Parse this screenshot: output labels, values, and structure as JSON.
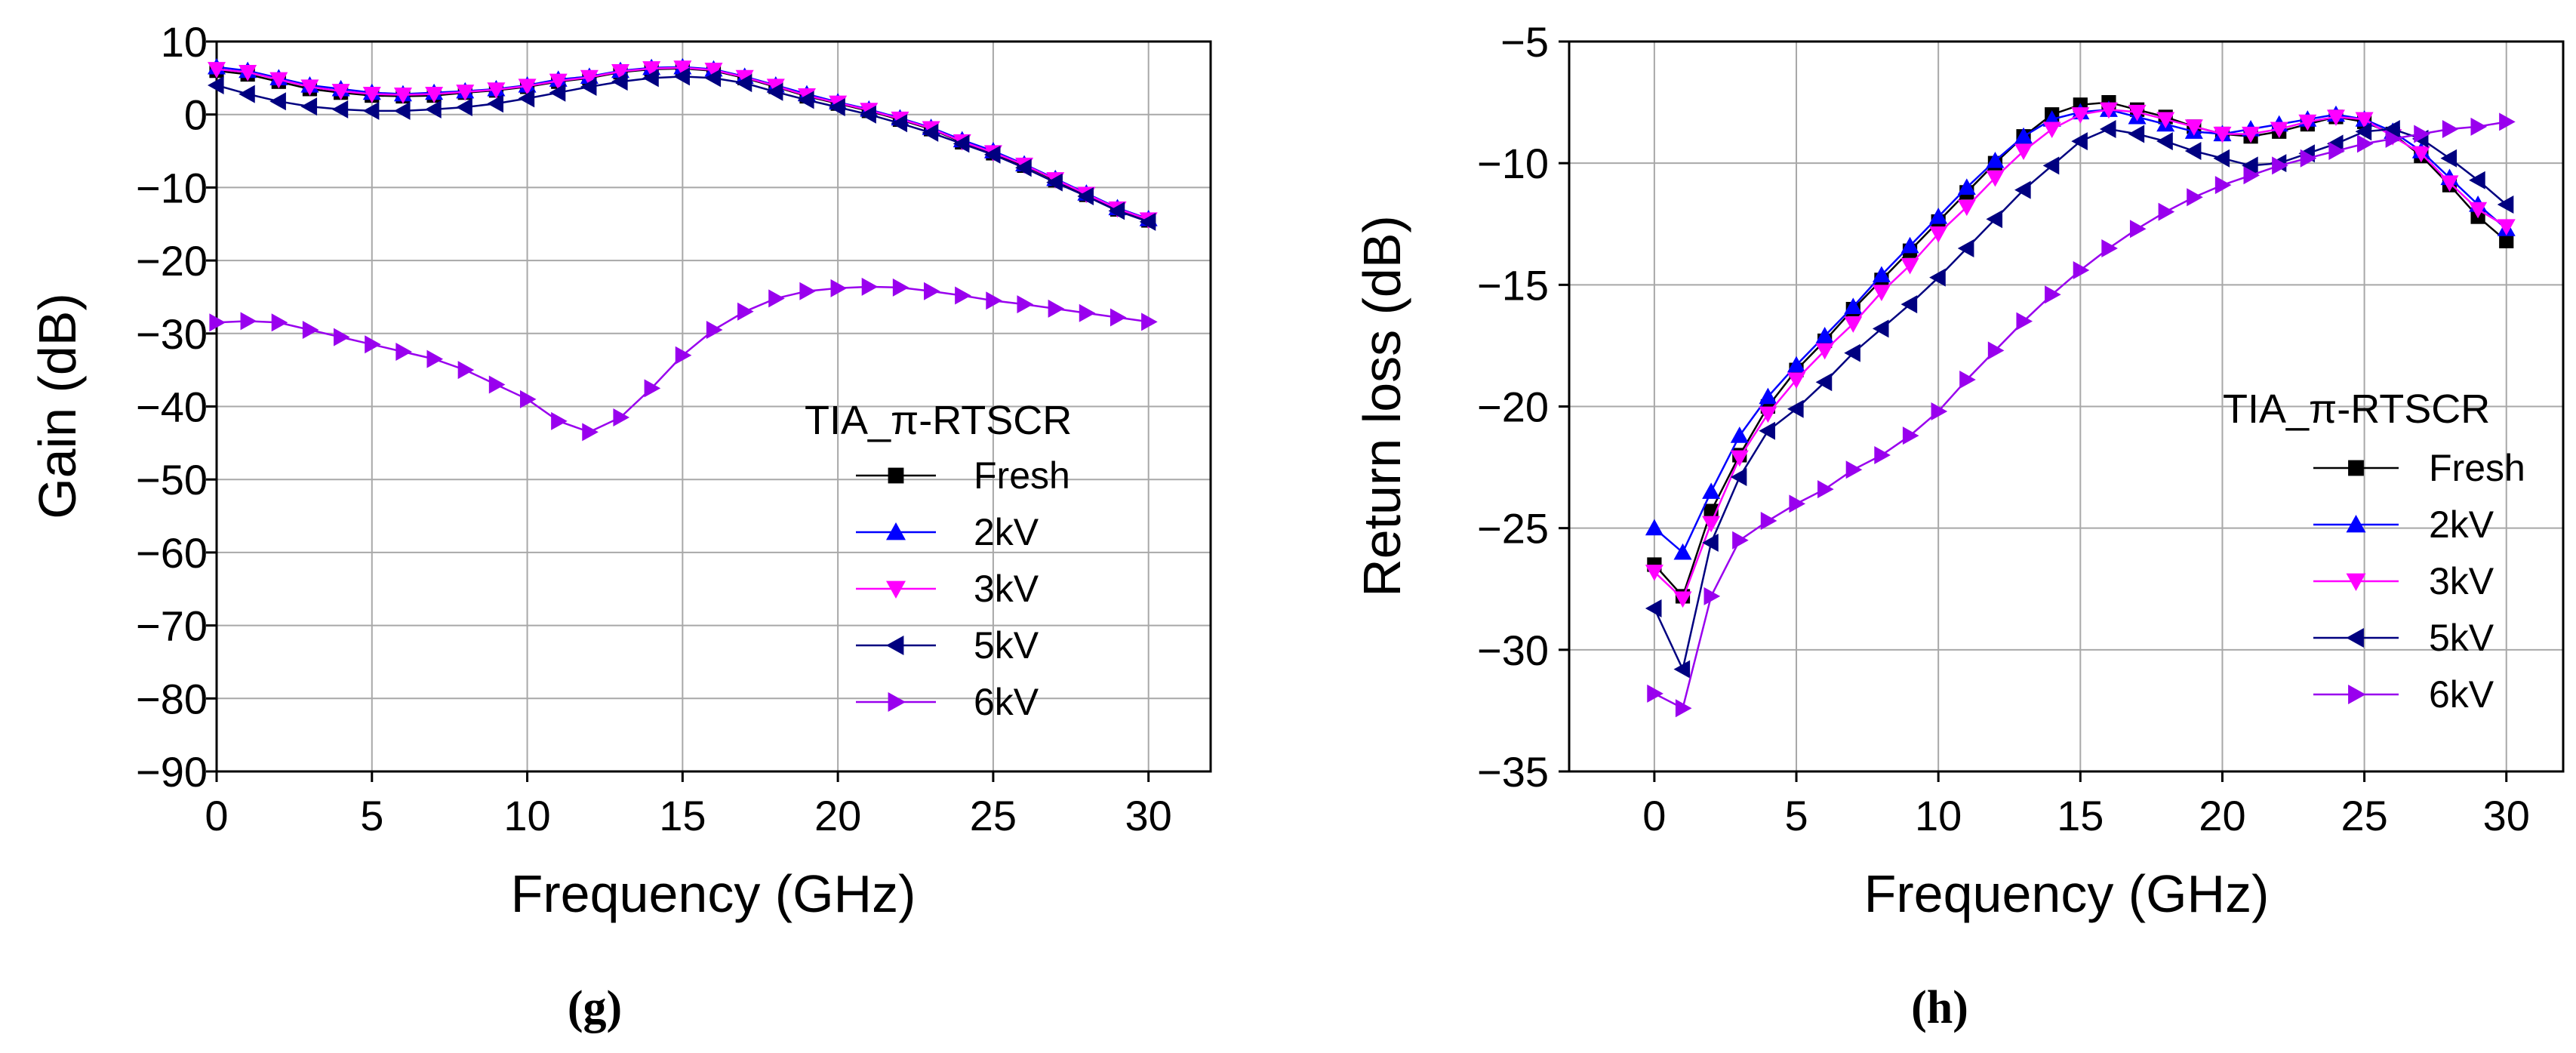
{
  "colors": {
    "Fresh": "#000000",
    "2kV": "#0000ff",
    "3kV": "#ff00ff",
    "5kV": "#000080",
    "6kV": "#9900ee"
  },
  "chart_data": [
    {
      "type": "line",
      "panel_label": "(g)",
      "xlabel": "Frequency (GHz)",
      "ylabel": "Gain (dB)",
      "xlim": [
        0,
        32
      ],
      "ylim": [
        -90,
        10
      ],
      "xticks": [
        0,
        5,
        10,
        15,
        20,
        25,
        30
      ],
      "yticks": [
        10,
        0,
        -10,
        -20,
        -30,
        -40,
        -50,
        -60,
        -70,
        -80,
        -90
      ],
      "xtick_labels": [
        "0",
        "5",
        "10",
        "15",
        "20",
        "25",
        "30"
      ],
      "ytick_labels": [
        "10",
        "0",
        "-10",
        "-20",
        "-30",
        "-40",
        "-50",
        "-60",
        "-70",
        "-80",
        "-90"
      ],
      "grid": true,
      "legend_title": "TIA_π-RTSCR",
      "legend_position": "middle-right",
      "x": [
        0,
        1,
        2,
        3,
        4,
        5,
        6,
        7,
        8,
        9,
        10,
        11,
        12,
        13,
        14,
        15,
        16,
        17,
        18,
        19,
        20,
        21,
        22,
        23,
        24,
        25,
        26,
        27,
        28,
        29,
        30
      ],
      "series": [
        {
          "name": "Fresh",
          "marker": "square",
          "values": [
            6,
            5.5,
            4.5,
            3.5,
            3,
            2.6,
            2.5,
            2.6,
            3,
            3.3,
            3.8,
            4.5,
            5,
            5.8,
            6.2,
            6.3,
            6,
            5,
            3.8,
            2.5,
            1.5,
            0.5,
            -0.7,
            -2,
            -3.8,
            -5.3,
            -7,
            -9,
            -11,
            -13,
            -14.5
          ]
        },
        {
          "name": "2kV",
          "marker": "triangle-up",
          "values": [
            6.5,
            6,
            5,
            4,
            3.5,
            3,
            2.8,
            3,
            3.2,
            3.5,
            4,
            4.8,
            5.2,
            6,
            6.4,
            6.5,
            6.2,
            5.2,
            4,
            2.8,
            1.7,
            0.7,
            -0.5,
            -1.8,
            -3.5,
            -5,
            -6.8,
            -8.8,
            -10.8,
            -12.8,
            -14.3
          ]
        },
        {
          "name": "3kV",
          "marker": "triangle-down",
          "values": [
            6.2,
            5.8,
            4.8,
            3.8,
            3.2,
            2.8,
            2.7,
            2.8,
            3.1,
            3.4,
            3.9,
            4.6,
            5.1,
            5.9,
            6.3,
            6.4,
            6.1,
            5.1,
            3.9,
            2.6,
            1.6,
            0.6,
            -0.6,
            -1.9,
            -3.7,
            -5.2,
            -6.9,
            -8.9,
            -10.9,
            -12.9,
            -14.4
          ]
        },
        {
          "name": "5kV",
          "marker": "triangle-left",
          "values": [
            4,
            2.8,
            1.8,
            1.1,
            0.7,
            0.5,
            0.5,
            0.7,
            1,
            1.5,
            2.2,
            3,
            3.8,
            4.5,
            5,
            5.2,
            5,
            4.3,
            3.1,
            2,
            1,
            0,
            -1.2,
            -2.5,
            -4,
            -5.5,
            -7.3,
            -9.3,
            -11.2,
            -13.2,
            -14.7
          ]
        },
        {
          "name": "6kV",
          "marker": "triangle-right",
          "values": [
            -28.5,
            -28.3,
            -28.5,
            -29.5,
            -30.5,
            -31.5,
            -32.5,
            -33.5,
            -35,
            -37,
            -39,
            -42,
            -43.5,
            -41.5,
            -37.5,
            -33,
            -29.5,
            -27,
            -25.2,
            -24.2,
            -23.8,
            -23.6,
            -23.7,
            -24.2,
            -24.8,
            -25.5,
            -26,
            -26.6,
            -27.2,
            -27.8,
            -28.4
          ]
        }
      ]
    },
    {
      "type": "line",
      "panel_label": "(h)",
      "xlabel": "Frequency (GHz)",
      "ylabel": "Return loss (dB)",
      "xlim": [
        -3,
        32
      ],
      "ylim": [
        -35,
        -5
      ],
      "xticks": [
        0,
        5,
        10,
        15,
        20,
        25,
        30
      ],
      "yticks": [
        -5,
        -10,
        -15,
        -20,
        -25,
        -30,
        -35
      ],
      "xtick_labels": [
        "0",
        "5",
        "10",
        "15",
        "20",
        "25",
        "30"
      ],
      "ytick_labels": [
        "-5",
        "-10",
        "-15",
        "-20",
        "-25",
        "-30",
        "-35"
      ],
      "grid": true,
      "legend_title": "TIA_π-RTSCR",
      "legend_position": "lower-right",
      "x": [
        0,
        1,
        2,
        3,
        4,
        5,
        6,
        7,
        8,
        9,
        10,
        11,
        12,
        13,
        14,
        15,
        16,
        17,
        18,
        19,
        20,
        21,
        22,
        23,
        24,
        25,
        26,
        27,
        28,
        29,
        30
      ],
      "series": [
        {
          "name": "Fresh",
          "marker": "square",
          "values": [
            -26.5,
            -27.8,
            -24.3,
            -22,
            -20,
            -18.5,
            -17.3,
            -16,
            -14.8,
            -13.6,
            -12.4,
            -11.2,
            -10,
            -8.9,
            -8,
            -7.6,
            -7.5,
            -7.8,
            -8.1,
            -8.5,
            -8.8,
            -8.9,
            -8.7,
            -8.4,
            -8.1,
            -8.3,
            -8.8,
            -9.7,
            -10.9,
            -12.2,
            -13.2
          ]
        },
        {
          "name": "2kV",
          "marker": "triangle-up",
          "values": [
            -25,
            -26,
            -23.5,
            -21.2,
            -19.6,
            -18.3,
            -17.1,
            -15.9,
            -14.6,
            -13.4,
            -12.2,
            -11,
            -9.9,
            -8.9,
            -8.2,
            -7.9,
            -7.8,
            -8.1,
            -8.4,
            -8.7,
            -8.8,
            -8.6,
            -8.4,
            -8.2,
            -8,
            -8.2,
            -8.7,
            -9.5,
            -10.6,
            -11.7,
            -12.7
          ]
        },
        {
          "name": "3kV",
          "marker": "triangle-down",
          "values": [
            -26.8,
            -27.9,
            -24.8,
            -22.1,
            -20.3,
            -18.9,
            -17.7,
            -16.6,
            -15.3,
            -14.2,
            -12.9,
            -11.8,
            -10.6,
            -9.5,
            -8.6,
            -8,
            -7.8,
            -7.9,
            -8.2,
            -8.5,
            -8.8,
            -8.8,
            -8.6,
            -8.3,
            -8.1,
            -8.2,
            -8.9,
            -9.6,
            -10.8,
            -11.9,
            -12.6
          ]
        },
        {
          "name": "5kV",
          "marker": "triangle-left",
          "values": [
            -28.3,
            -30.8,
            -25.6,
            -22.9,
            -21,
            -20.1,
            -19,
            -17.8,
            -16.8,
            -15.8,
            -14.7,
            -13.5,
            -12.3,
            -11.1,
            -10.1,
            -9.1,
            -8.6,
            -8.8,
            -9.1,
            -9.5,
            -9.8,
            -10.1,
            -10,
            -9.6,
            -9.2,
            -8.7,
            -8.6,
            -9,
            -9.8,
            -10.7,
            -11.7
          ]
        },
        {
          "name": "6kV",
          "marker": "triangle-right",
          "values": [
            -31.8,
            -32.4,
            -27.8,
            -25.5,
            -24.7,
            -24,
            -23.4,
            -22.6,
            -22,
            -21.2,
            -20.2,
            -18.9,
            -17.7,
            -16.5,
            -15.4,
            -14.4,
            -13.5,
            -12.7,
            -12,
            -11.4,
            -10.9,
            -10.5,
            -10.1,
            -9.8,
            -9.5,
            -9.2,
            -9,
            -8.8,
            -8.6,
            -8.5,
            -8.3
          ]
        }
      ]
    }
  ]
}
